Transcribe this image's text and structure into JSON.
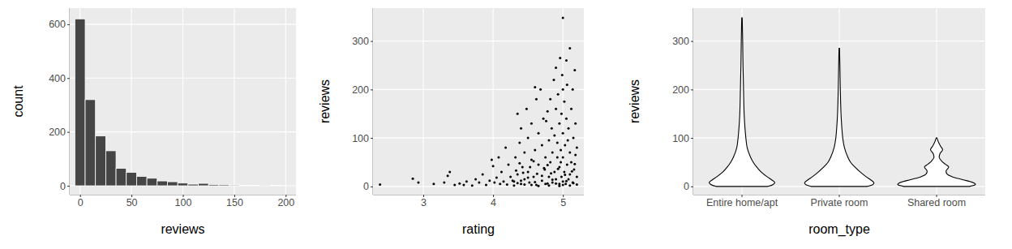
{
  "chart_data": [
    {
      "type": "histogram",
      "x_label": "reviews",
      "y_label": "count",
      "bins": [
        -5,
        5,
        15,
        25,
        35,
        45,
        55,
        65,
        75,
        85,
        95,
        105,
        115,
        125,
        135,
        145,
        155,
        165,
        175,
        185,
        195
      ],
      "values": [
        620,
        320,
        185,
        130,
        65,
        50,
        35,
        28,
        18,
        15,
        10,
        6,
        9,
        5,
        4,
        3,
        2,
        2,
        1,
        2
      ],
      "color": "#454545",
      "xlim": [
        -10,
        210
      ],
      "xticks": [
        0,
        50,
        100,
        150,
        200
      ],
      "ylim": [
        -33,
        660
      ],
      "yticks": [
        0,
        200,
        400,
        600
      ],
      "grid": true
    },
    {
      "type": "scatter",
      "x_label": "rating",
      "y_label": "reviews",
      "x": [
        2.38,
        2.85,
        2.93,
        3.15,
        3.35,
        3.38,
        3.3,
        3.45,
        3.52,
        3.58,
        3.62,
        3.7,
        3.75,
        3.8,
        3.85,
        3.9,
        3.95,
        3.98,
        4.0,
        4.02,
        4.05,
        4.08,
        4.1,
        4.12,
        4.15,
        4.18,
        4.2,
        4.22,
        4.25,
        4.28,
        4.3,
        4.32,
        4.35,
        4.35,
        4.38,
        4.4,
        4.4,
        4.42,
        4.45,
        4.45,
        4.48,
        4.5,
        4.5,
        4.52,
        4.55,
        4.55,
        4.58,
        4.6,
        4.6,
        4.62,
        4.65,
        4.65,
        4.68,
        4.7,
        4.7,
        4.72,
        4.74,
        4.75,
        4.78,
        4.78,
        4.8,
        4.8,
        4.82,
        4.82,
        4.84,
        4.85,
        4.85,
        4.87,
        4.88,
        4.88,
        4.9,
        4.9,
        4.9,
        4.92,
        4.92,
        4.93,
        4.95,
        4.95,
        4.95,
        4.96,
        4.97,
        4.98,
        4.98,
        5.0,
        5.0,
        5.0,
        5.0,
        5.0,
        5.02,
        5.02,
        5.03,
        5.04,
        5.05,
        5.05,
        5.06,
        5.07,
        5.08,
        5.08,
        5.1,
        5.1,
        5.1,
        5.12,
        5.12,
        5.14,
        5.14,
        5.15,
        5.16,
        5.17,
        5.18,
        5.18,
        5.2,
        5.2,
        4.62,
        4.76,
        5.06,
        4.99,
        4.3,
        4.35,
        4.4,
        4.45,
        4.5,
        4.55,
        4.6,
        4.65,
        4.7,
        4.75,
        4.8,
        4.85,
        4.9,
        4.95,
        5.0,
        5.05,
        5.1,
        5.15,
        5.2,
        4.33,
        4.43,
        4.53,
        4.63,
        4.73,
        4.83,
        4.93,
        5.03,
        5.13,
        4.38,
        4.58,
        4.78,
        4.97,
        5.17
      ],
      "values": [
        4,
        16,
        8,
        5,
        22,
        30,
        8,
        3,
        6,
        3,
        10,
        2,
        15,
        8,
        25,
        3,
        12,
        55,
        42,
        8,
        18,
        60,
        5,
        30,
        10,
        80,
        4,
        45,
        20,
        12,
        10,
        60,
        150,
        25,
        90,
        5,
        120,
        40,
        70,
        15,
        160,
        100,
        30,
        8,
        55,
        130,
        20,
        75,
        205,
        3,
        110,
        45,
        200,
        12,
        85,
        140,
        35,
        60,
        6,
        155,
        95,
        20,
        180,
        50,
        120,
        8,
        70,
        220,
        30,
        105,
        160,
        15,
        245,
        60,
        90,
        190,
        5,
        130,
        40,
        265,
        75,
        20,
        150,
        348,
        10,
        110,
        60,
        200,
        30,
        175,
        85,
        5,
        140,
        260,
        45,
        95,
        15,
        120,
        70,
        285,
        25,
        160,
        50,
        200,
        8,
        100,
        35,
        240,
        65,
        130,
        20,
        80,
        180,
        135,
        210,
        230,
        2,
        7,
        12,
        4,
        18,
        3,
        9,
        1,
        22,
        5,
        2,
        14,
        6,
        1,
        3,
        11,
        2,
        7,
        4,
        33,
        28,
        40,
        26,
        38,
        27,
        36,
        24,
        31,
        48,
        52,
        44,
        50,
        46
      ],
      "color": "#000000",
      "xlim": [
        2.28,
        5.3
      ],
      "xticks": [
        3,
        4,
        5
      ],
      "ylim": [
        -17,
        368
      ],
      "yticks": [
        0,
        100,
        200,
        300
      ],
      "grid": true
    },
    {
      "type": "violin",
      "x_label": "room_type",
      "y_label": "reviews",
      "categories": [
        "Entire home/apt",
        "Private room",
        "Shared room"
      ],
      "violins": [
        {
          "y": [
            0,
            4,
            8,
            14,
            20,
            30,
            40,
            50,
            60,
            80,
            100,
            120,
            150,
            200,
            250,
            300,
            348
          ],
          "density": [
            30,
            36,
            38,
            34,
            29,
            22,
            17,
            13,
            10,
            6,
            4.5,
            3.5,
            2.5,
            1.8,
            1.2,
            0.8,
            0.3
          ]
        },
        {
          "y": [
            0,
            4,
            8,
            14,
            20,
            30,
            40,
            50,
            60,
            80,
            100,
            120,
            150,
            200,
            250,
            285
          ],
          "density": [
            32,
            39,
            40,
            36,
            31,
            24,
            18,
            13,
            10,
            6,
            4,
            3,
            2,
            1.2,
            0.7,
            0.3
          ]
        },
        {
          "y": [
            0,
            4,
            8,
            14,
            20,
            26,
            32,
            40,
            46,
            52,
            60,
            68,
            76,
            82,
            90,
            100
          ],
          "density": [
            38,
            45,
            42,
            30,
            18,
            12,
            11,
            14,
            10,
            6,
            3,
            4,
            7,
            5,
            2.5,
            0.5
          ]
        }
      ],
      "color": "#000000",
      "ylim": [
        -17,
        368
      ],
      "yticks": [
        0,
        100,
        200,
        300
      ],
      "grid": true
    }
  ]
}
